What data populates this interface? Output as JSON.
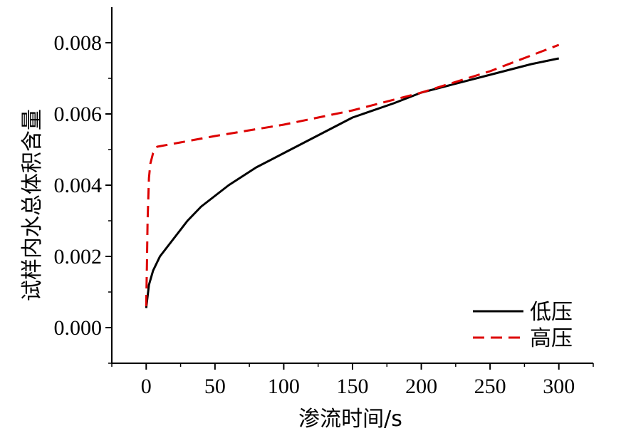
{
  "chart_data": {
    "type": "line",
    "title": "",
    "xlabel": "渗流时间/s",
    "ylabel": "试样内水总体积含量",
    "xlim": [
      -25,
      325
    ],
    "ylim": [
      -0.001,
      0.009
    ],
    "xticks": [
      0,
      50,
      100,
      150,
      200,
      250,
      300
    ],
    "xtick_labels": [
      "0",
      "50",
      "100",
      "150",
      "200",
      "250",
      "300"
    ],
    "yticks": [
      0.0,
      0.002,
      0.004,
      0.006,
      0.008
    ],
    "ytick_labels": [
      "0.000",
      "0.002",
      "0.004",
      "0.006",
      "0.008"
    ],
    "legend_position": "bottom-right",
    "grid": false,
    "series": [
      {
        "name": "低压",
        "style": "solid",
        "color": "#000000",
        "x": [
          0,
          2,
          5,
          10,
          20,
          30,
          40,
          50,
          60,
          80,
          100,
          120,
          150,
          180,
          200,
          220,
          250,
          280,
          300
        ],
        "y": [
          0.00055,
          0.0012,
          0.0016,
          0.002,
          0.0025,
          0.003,
          0.0034,
          0.0037,
          0.004,
          0.0045,
          0.0049,
          0.0053,
          0.0059,
          0.0063,
          0.0066,
          0.0068,
          0.0071,
          0.0074,
          0.00756
        ]
      },
      {
        "name": "高压",
        "style": "dashed",
        "color": "#dd0000",
        "x": [
          0,
          0.5,
          1,
          2,
          3,
          5,
          8,
          50,
          100,
          150,
          200,
          250,
          300
        ],
        "y": [
          0.0006,
          0.0017,
          0.003,
          0.0042,
          0.0046,
          0.0049,
          0.00508,
          0.00538,
          0.0057,
          0.0061,
          0.0066,
          0.0072,
          0.00794
        ]
      }
    ]
  }
}
